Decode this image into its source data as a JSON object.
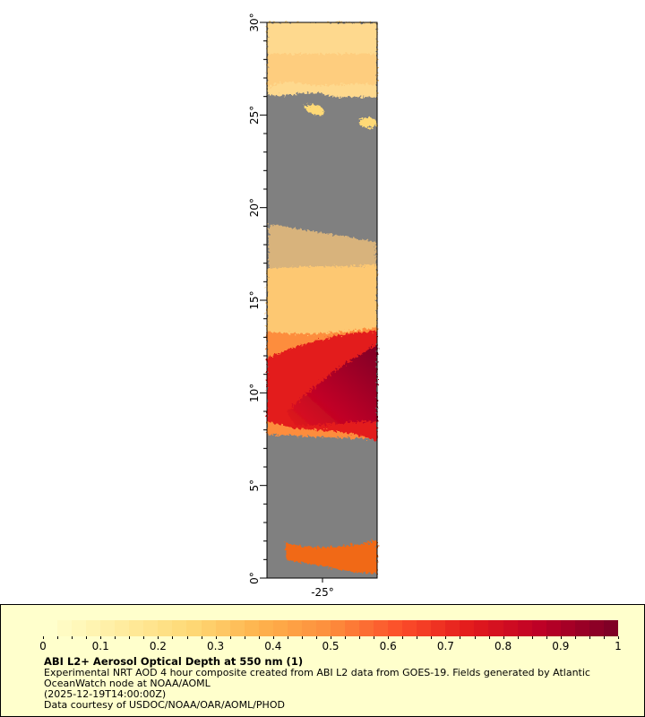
{
  "map": {
    "lat_labels": [
      "0°",
      "5°",
      "10°",
      "15°",
      "20°",
      "25°",
      "30°"
    ],
    "lon_labels": [
      "-25°"
    ],
    "lat_range": [
      0,
      30
    ],
    "land_mask_color": "#808080"
  },
  "legend": {
    "ticks": [
      "0",
      "0.1",
      "0.2",
      "0.3",
      "0.4",
      "0.5",
      "0.6",
      "0.7",
      "0.8",
      "0.9",
      "1"
    ],
    "range": [
      0,
      1
    ],
    "colors": [
      "#ffffcc",
      "#ffeda0",
      "#fed976",
      "#feb24c",
      "#fd8d3c",
      "#fc4e2a",
      "#e31a1c",
      "#bd0026",
      "#800026"
    ],
    "background": "#ffffcc",
    "title": "ABI L2+ Aerosol Optical Depth at 550 nm (1)",
    "line1": "Experimental NRT AOD 4 hour composite created from ABI L2 data from GOES-19. Fields generated by Atlantic",
    "line2": "OceanWatch node at NOAA/AOML",
    "line3": "(2025-12-19T14:00:00Z)",
    "line4": "Data courtesy of USDOC/NOAA/OAR/AOML/PHOD"
  }
}
